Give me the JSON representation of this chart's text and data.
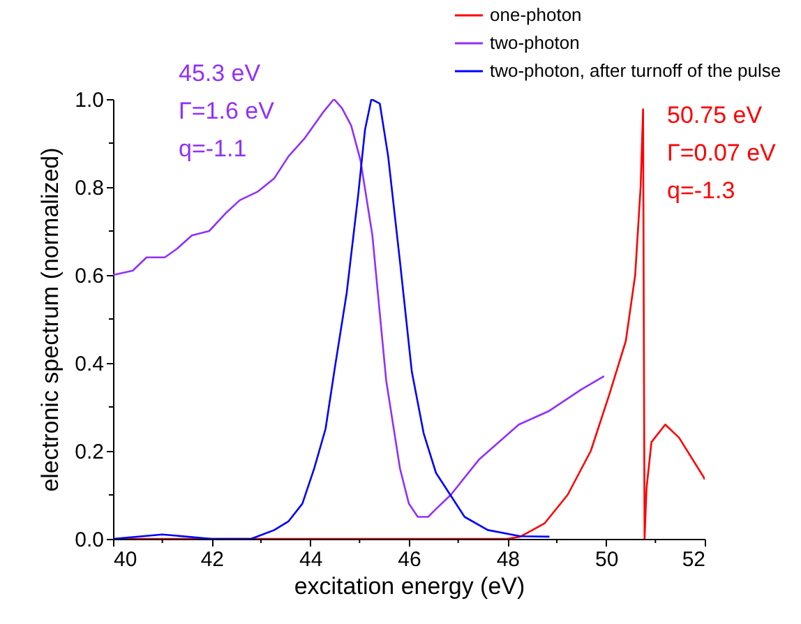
{
  "chart_data": {
    "type": "line",
    "xlabel": "excitation energy (eV)",
    "ylabel": "electronic spectrum (normalized)",
    "xlim": [
      40,
      52
    ],
    "ylim": [
      0,
      1.0
    ],
    "xticks": [
      40,
      {
        "value": 41,
        "label": null
      },
      42,
      {
        "value": 43,
        "label": null
      },
      44,
      {
        "value": 45,
        "label": null
      },
      46,
      {
        "value": 47,
        "label": null
      },
      48,
      {
        "value": 49,
        "label": null
      },
      50,
      {
        "value": 51,
        "label": null
      },
      52
    ],
    "yticks": [
      {
        "value": 0,
        "label": "0.0"
      },
      {
        "value": 0.1,
        "label": null
      },
      {
        "value": 0.2,
        "label": "0.2"
      },
      {
        "value": 0.3,
        "label": null
      },
      {
        "value": 0.4,
        "label": "0.4"
      },
      {
        "value": 0.5,
        "label": null
      },
      {
        "value": 0.6,
        "label": "0.6"
      },
      {
        "value": 0.7,
        "label": null
      },
      {
        "value": 0.8,
        "label": "0.8"
      },
      {
        "value": 0.9,
        "label": null
      },
      {
        "value": 1.0,
        "label": "1.0"
      }
    ],
    "legend": "top right",
    "grid": false,
    "series": [
      {
        "name": "one-photon",
        "color": "#ff0000",
        "x": [
          40,
          42,
          44,
          46,
          48,
          48.26,
          48.75,
          49.22,
          49.69,
          50.07,
          50.4,
          50.59,
          50.7,
          50.75,
          50.78,
          50.82,
          50.92,
          51.2,
          51.48,
          51.98,
          52
        ],
        "values": [
          0,
          0,
          0,
          0,
          0,
          0.005,
          0.035,
          0.1,
          0.2,
          0.33,
          0.45,
          0.6,
          0.8,
          0.977,
          0,
          0.115,
          0.22,
          0.26,
          0.23,
          0.14,
          0.135
        ]
      },
      {
        "name": "two-photon",
        "color": "#9030ff",
        "x": [
          40,
          40.4,
          40.68,
          41.05,
          41.3,
          41.6,
          41.95,
          42.28,
          42.57,
          42.94,
          43.27,
          43.56,
          43.88,
          44.26,
          44.48,
          44.64,
          44.83,
          45.02,
          45.26,
          45.54,
          45.82,
          46.0,
          46.18,
          46.39,
          46.57,
          46.85,
          47.42,
          48.23,
          48.83,
          49.5,
          49.96
        ],
        "values": [
          0.6,
          0.61,
          0.64,
          0.64,
          0.66,
          0.69,
          0.7,
          0.74,
          0.77,
          0.79,
          0.82,
          0.87,
          0.91,
          0.97,
          1.0,
          0.98,
          0.94,
          0.86,
          0.69,
          0.36,
          0.16,
          0.08,
          0.05,
          0.05,
          0.07,
          0.1,
          0.18,
          0.26,
          0.29,
          0.34,
          0.37
        ]
      },
      {
        "name": "two-photon, after turnoff of the pulse",
        "color": "#0000ff",
        "x": [
          40,
          41,
          42,
          42.8,
          43.27,
          43.56,
          43.84,
          44.08,
          44.31,
          44.5,
          44.74,
          44.97,
          45.11,
          45.24,
          45.41,
          45.58,
          45.82,
          46.06,
          46.3,
          46.55,
          46.84,
          47.13,
          47.6,
          48.26,
          48.85
        ],
        "values": [
          0,
          0.01,
          0,
          0,
          0.02,
          0.04,
          0.08,
          0.16,
          0.25,
          0.39,
          0.56,
          0.78,
          0.93,
          1.0,
          0.99,
          0.87,
          0.63,
          0.38,
          0.24,
          0.15,
          0.1,
          0.05,
          0.02,
          0.006,
          0.005
        ]
      }
    ],
    "annotations": [
      "45.3 eV",
      "Γ=1.6 eV",
      "q=-1.1",
      "50.75 eV",
      "Γ=0.07 eV",
      "q=-1.3"
    ]
  }
}
